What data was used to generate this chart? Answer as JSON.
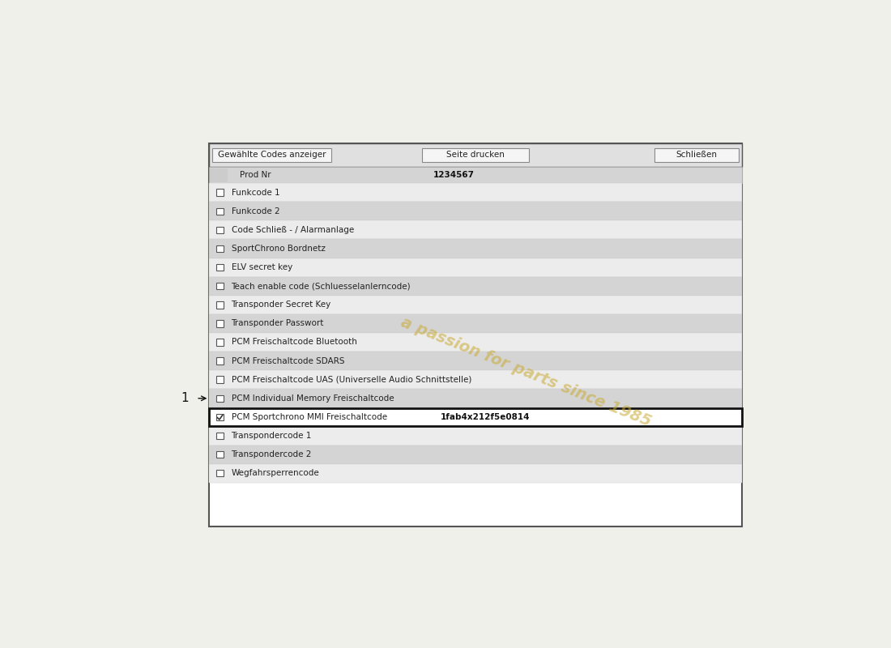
{
  "bg_color": "#f0f0eb",
  "panel_bg": "#ffffff",
  "panel_border": "#555555",
  "header_buttons": [
    "Gewählte Codes anzeiger",
    "Seite drucken",
    "Schließen"
  ],
  "prod_nr_label": "Prod Nr",
  "prod_nr_value": "1234567",
  "rows": [
    {
      "label": "Funkcode 1",
      "value": "",
      "shaded": false,
      "checked": false
    },
    {
      "label": "Funkcode 2",
      "value": "",
      "shaded": true,
      "checked": false
    },
    {
      "label": "Code Schließ - / Alarmanlage",
      "value": "",
      "shaded": false,
      "checked": false
    },
    {
      "label": "SportChrono Bordnetz",
      "value": "",
      "shaded": true,
      "checked": false
    },
    {
      "label": "ELV secret key",
      "value": "",
      "shaded": false,
      "checked": false
    },
    {
      "label": "Teach enable code (Schluesselanlerncode)",
      "value": "",
      "shaded": true,
      "checked": false
    },
    {
      "label": "Transponder Secret Key",
      "value": "",
      "shaded": false,
      "checked": false
    },
    {
      "label": "Transponder Passwort",
      "value": "",
      "shaded": true,
      "checked": false
    },
    {
      "label": "PCM Freischaltcode Bluetooth",
      "value": "",
      "shaded": false,
      "checked": false
    },
    {
      "label": "PCM Freischaltcode SDARS",
      "value": "",
      "shaded": true,
      "checked": false
    },
    {
      "label": "PCM Freischaltcode UAS (Universelle Audio Schnittstelle)",
      "value": "",
      "shaded": false,
      "checked": false
    },
    {
      "label": "PCM Individual Memory Freischaltcode",
      "value": "",
      "shaded": true,
      "checked": false
    },
    {
      "label": "PCM Sportchrono MMI Freischaltcode",
      "value": "1fab4x212f5e0814",
      "shaded": false,
      "checked": true,
      "highlighted": true
    },
    {
      "label": "Transpondercode 1",
      "value": "",
      "shaded": false,
      "checked": false
    },
    {
      "label": "Transpondercode 2",
      "value": "",
      "shaded": true,
      "checked": false
    },
    {
      "label": "Wegfahrsperrencode",
      "value": "",
      "shaded": false,
      "checked": false
    }
  ],
  "annotation_row": 11,
  "font_size": 7.5,
  "shaded_color": "#d4d4d4",
  "unshaded_color": "#ececec",
  "header_bg": "#e0e0e0",
  "prod_row_color": "#d4d4d4",
  "watermark_text": "a passion for parts since 1985",
  "watermark_color": "#c8a830",
  "watermark_alpha": 0.55
}
